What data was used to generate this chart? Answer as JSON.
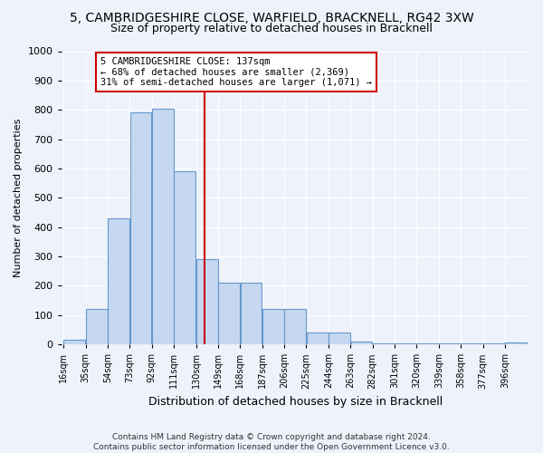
{
  "title1": "5, CAMBRIDGESHIRE CLOSE, WARFIELD, BRACKNELL, RG42 3XW",
  "title2": "Size of property relative to detached houses in Bracknell",
  "xlabel": "Distribution of detached houses by size in Bracknell",
  "ylabel": "Number of detached properties",
  "footnote": "Contains HM Land Registry data © Crown copyright and database right 2024.\nContains public sector information licensed under the Open Government Licence v3.0.",
  "bar_edges": [
    16,
    35,
    54,
    73,
    92,
    111,
    130,
    149,
    168,
    187,
    206,
    225,
    244,
    263,
    282,
    301,
    320,
    339,
    358,
    377,
    396
  ],
  "bar_heights": [
    15,
    120,
    430,
    790,
    805,
    590,
    290,
    210,
    210,
    120,
    120,
    40,
    40,
    10,
    5,
    5,
    2,
    2,
    2,
    2,
    8
  ],
  "bar_color": "#c5d8f0",
  "bar_edge_color": "#6699cc",
  "property_size": 137,
  "vline_color": "#cc0000",
  "annotation_text": "5 CAMBRIDGESHIRE CLOSE: 137sqm\n← 68% of detached houses are smaller (2,369)\n31% of semi-detached houses are larger (1,071) →",
  "annotation_box_color": "#ffffff",
  "annotation_box_edge": "#cc0000",
  "ylim": [
    0,
    1000
  ],
  "yticks": [
    0,
    100,
    200,
    300,
    400,
    500,
    600,
    700,
    800,
    900,
    1000
  ],
  "background_color": "#eef2fb",
  "title1_fontsize": 10,
  "title2_fontsize": 9,
  "tick_labels": [
    "16sqm",
    "35sqm",
    "54sqm",
    "73sqm",
    "92sqm",
    "111sqm",
    "130sqm",
    "149sqm",
    "168sqm",
    "187sqm",
    "206sqm",
    "225sqm",
    "244sqm",
    "263sqm",
    "282sqm",
    "301sqm",
    "320sqm",
    "339sqm",
    "358sqm",
    "377sqm",
    "396sqm"
  ]
}
